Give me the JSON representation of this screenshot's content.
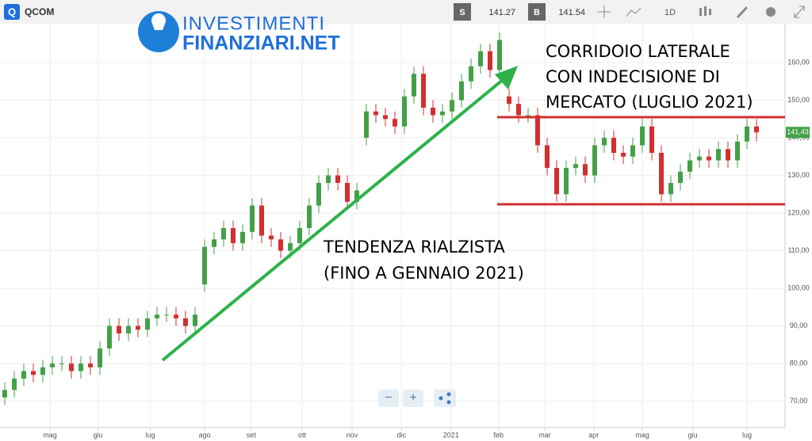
{
  "toolbar": {
    "symbol": "QCOM",
    "sell_label": "S",
    "sell": "141.27",
    "buy_label": "B",
    "buy": "141.54",
    "interval": "1D"
  },
  "logo": {
    "line1": "INVESTIMENTI",
    "line2": "FINANZIARI.NET"
  },
  "chart_data": {
    "type": "candlestick",
    "up_color": "#43a047",
    "down_color": "#d32f2f",
    "grid": true,
    "open": [
      71,
      73,
      76,
      78,
      77,
      79,
      80,
      80,
      78,
      80,
      79,
      84,
      90,
      88,
      90,
      89,
      92,
      93,
      93,
      92,
      90,
      101,
      111,
      113,
      116,
      112,
      115,
      122,
      114,
      113,
      110,
      112,
      116,
      122,
      128,
      130,
      128,
      123,
      140,
      147,
      146,
      145,
      143,
      151,
      157,
      148,
      146,
      147,
      150,
      155,
      159,
      163,
      158,
      151,
      149,
      146,
      146,
      138,
      132,
      125,
      132,
      133,
      130,
      138,
      140,
      136,
      135,
      138,
      143,
      136,
      125,
      128,
      131,
      134,
      135,
      134,
      137,
      134,
      139,
      143
    ],
    "high": [
      75,
      78,
      80,
      80,
      81,
      82,
      82,
      82,
      82,
      82,
      86,
      92,
      92,
      92,
      92,
      94,
      95,
      95,
      95,
      94,
      95,
      113,
      115,
      118,
      118,
      117,
      124,
      124,
      116,
      115,
      114,
      118,
      124,
      130,
      132,
      132,
      130,
      128,
      149,
      149,
      148,
      147,
      153,
      159,
      159,
      150,
      149,
      152,
      157,
      161,
      165,
      165,
      168,
      153,
      151,
      148,
      148,
      140,
      134,
      134,
      135,
      135,
      140,
      142,
      142,
      138,
      140,
      145,
      145,
      138,
      130,
      133,
      136,
      137,
      137,
      139,
      139,
      141,
      145,
      145
    ],
    "low": [
      69,
      71,
      74,
      75,
      75,
      77,
      78,
      76,
      76,
      77,
      77,
      82,
      86,
      86,
      87,
      87,
      90,
      91,
      90,
      88,
      88,
      99,
      109,
      111,
      110,
      110,
      113,
      112,
      111,
      108,
      108,
      110,
      114,
      120,
      126,
      126,
      121,
      121,
      138,
      144,
      143,
      141,
      141,
      149,
      146,
      144,
      144,
      145,
      148,
      153,
      157,
      156,
      156,
      147,
      144,
      144,
      136,
      130,
      123,
      123,
      130,
      128,
      128,
      136,
      134,
      133,
      133,
      136,
      134,
      123,
      123,
      126,
      129,
      132,
      132,
      132,
      132,
      132,
      137,
      139
    ],
    "close": [
      73,
      76,
      78,
      77,
      79,
      80,
      80,
      78,
      80,
      79,
      84,
      90,
      88,
      90,
      89,
      92,
      93,
      93,
      92,
      90,
      93,
      111,
      113,
      116,
      112,
      115,
      122,
      114,
      113,
      110,
      112,
      116,
      122,
      128,
      130,
      128,
      123,
      126,
      147,
      146,
      145,
      143,
      151,
      157,
      148,
      146,
      147,
      150,
      155,
      159,
      163,
      158,
      166,
      149,
      146,
      146,
      138,
      132,
      125,
      132,
      133,
      130,
      138,
      140,
      136,
      135,
      138,
      143,
      136,
      125,
      128,
      131,
      134,
      135,
      134,
      137,
      134,
      139,
      143,
      141.43
    ],
    "last_price": {
      "value": 141.43,
      "label": "141,43"
    },
    "xlim": [
      -0.5,
      82
    ],
    "xticks": [
      {
        "value": 4.75,
        "label": "mag"
      },
      {
        "value": 9.8,
        "label": "giu"
      },
      {
        "value": 15.3,
        "label": "lug"
      },
      {
        "value": 21,
        "label": "ago"
      },
      {
        "value": 25.9,
        "label": "set"
      },
      {
        "value": 31.25,
        "label": "ott"
      },
      {
        "value": 36.5,
        "label": "nov"
      },
      {
        "value": 41.7,
        "label": "dic"
      },
      {
        "value": 46.9,
        "label": "2021"
      },
      {
        "value": 51.9,
        "label": "feb"
      },
      {
        "value": 56.75,
        "label": "mar"
      },
      {
        "value": 61.9,
        "label": "apr"
      },
      {
        "value": 67,
        "label": "mag"
      },
      {
        "value": 72.3,
        "label": "giu"
      },
      {
        "value": 78,
        "label": "lug"
      }
    ],
    "ylim": [
      63,
      170.3
    ],
    "yticks": [
      {
        "value": 70,
        "label": "70,00"
      },
      {
        "value": 80,
        "label": "80,00"
      },
      {
        "value": 90,
        "label": "90,00"
      },
      {
        "value": 100,
        "label": "100,00"
      },
      {
        "value": 110,
        "label": "110,00"
      },
      {
        "value": 120,
        "label": "120,00"
      },
      {
        "value": 130,
        "label": "130,00"
      },
      {
        "value": 140,
        "label": "140,00"
      },
      {
        "value": 150,
        "label": "150,00"
      },
      {
        "value": 160,
        "label": "160,00"
      }
    ],
    "annotations": [
      "CORRIDOIO LATERALE",
      "CON INDECISIONE DI",
      "MERCATO (LUGLIO 2021)",
      "TENDENZA RIALZISTA",
      "(FINO A GENNAIO 2021)"
    ]
  }
}
